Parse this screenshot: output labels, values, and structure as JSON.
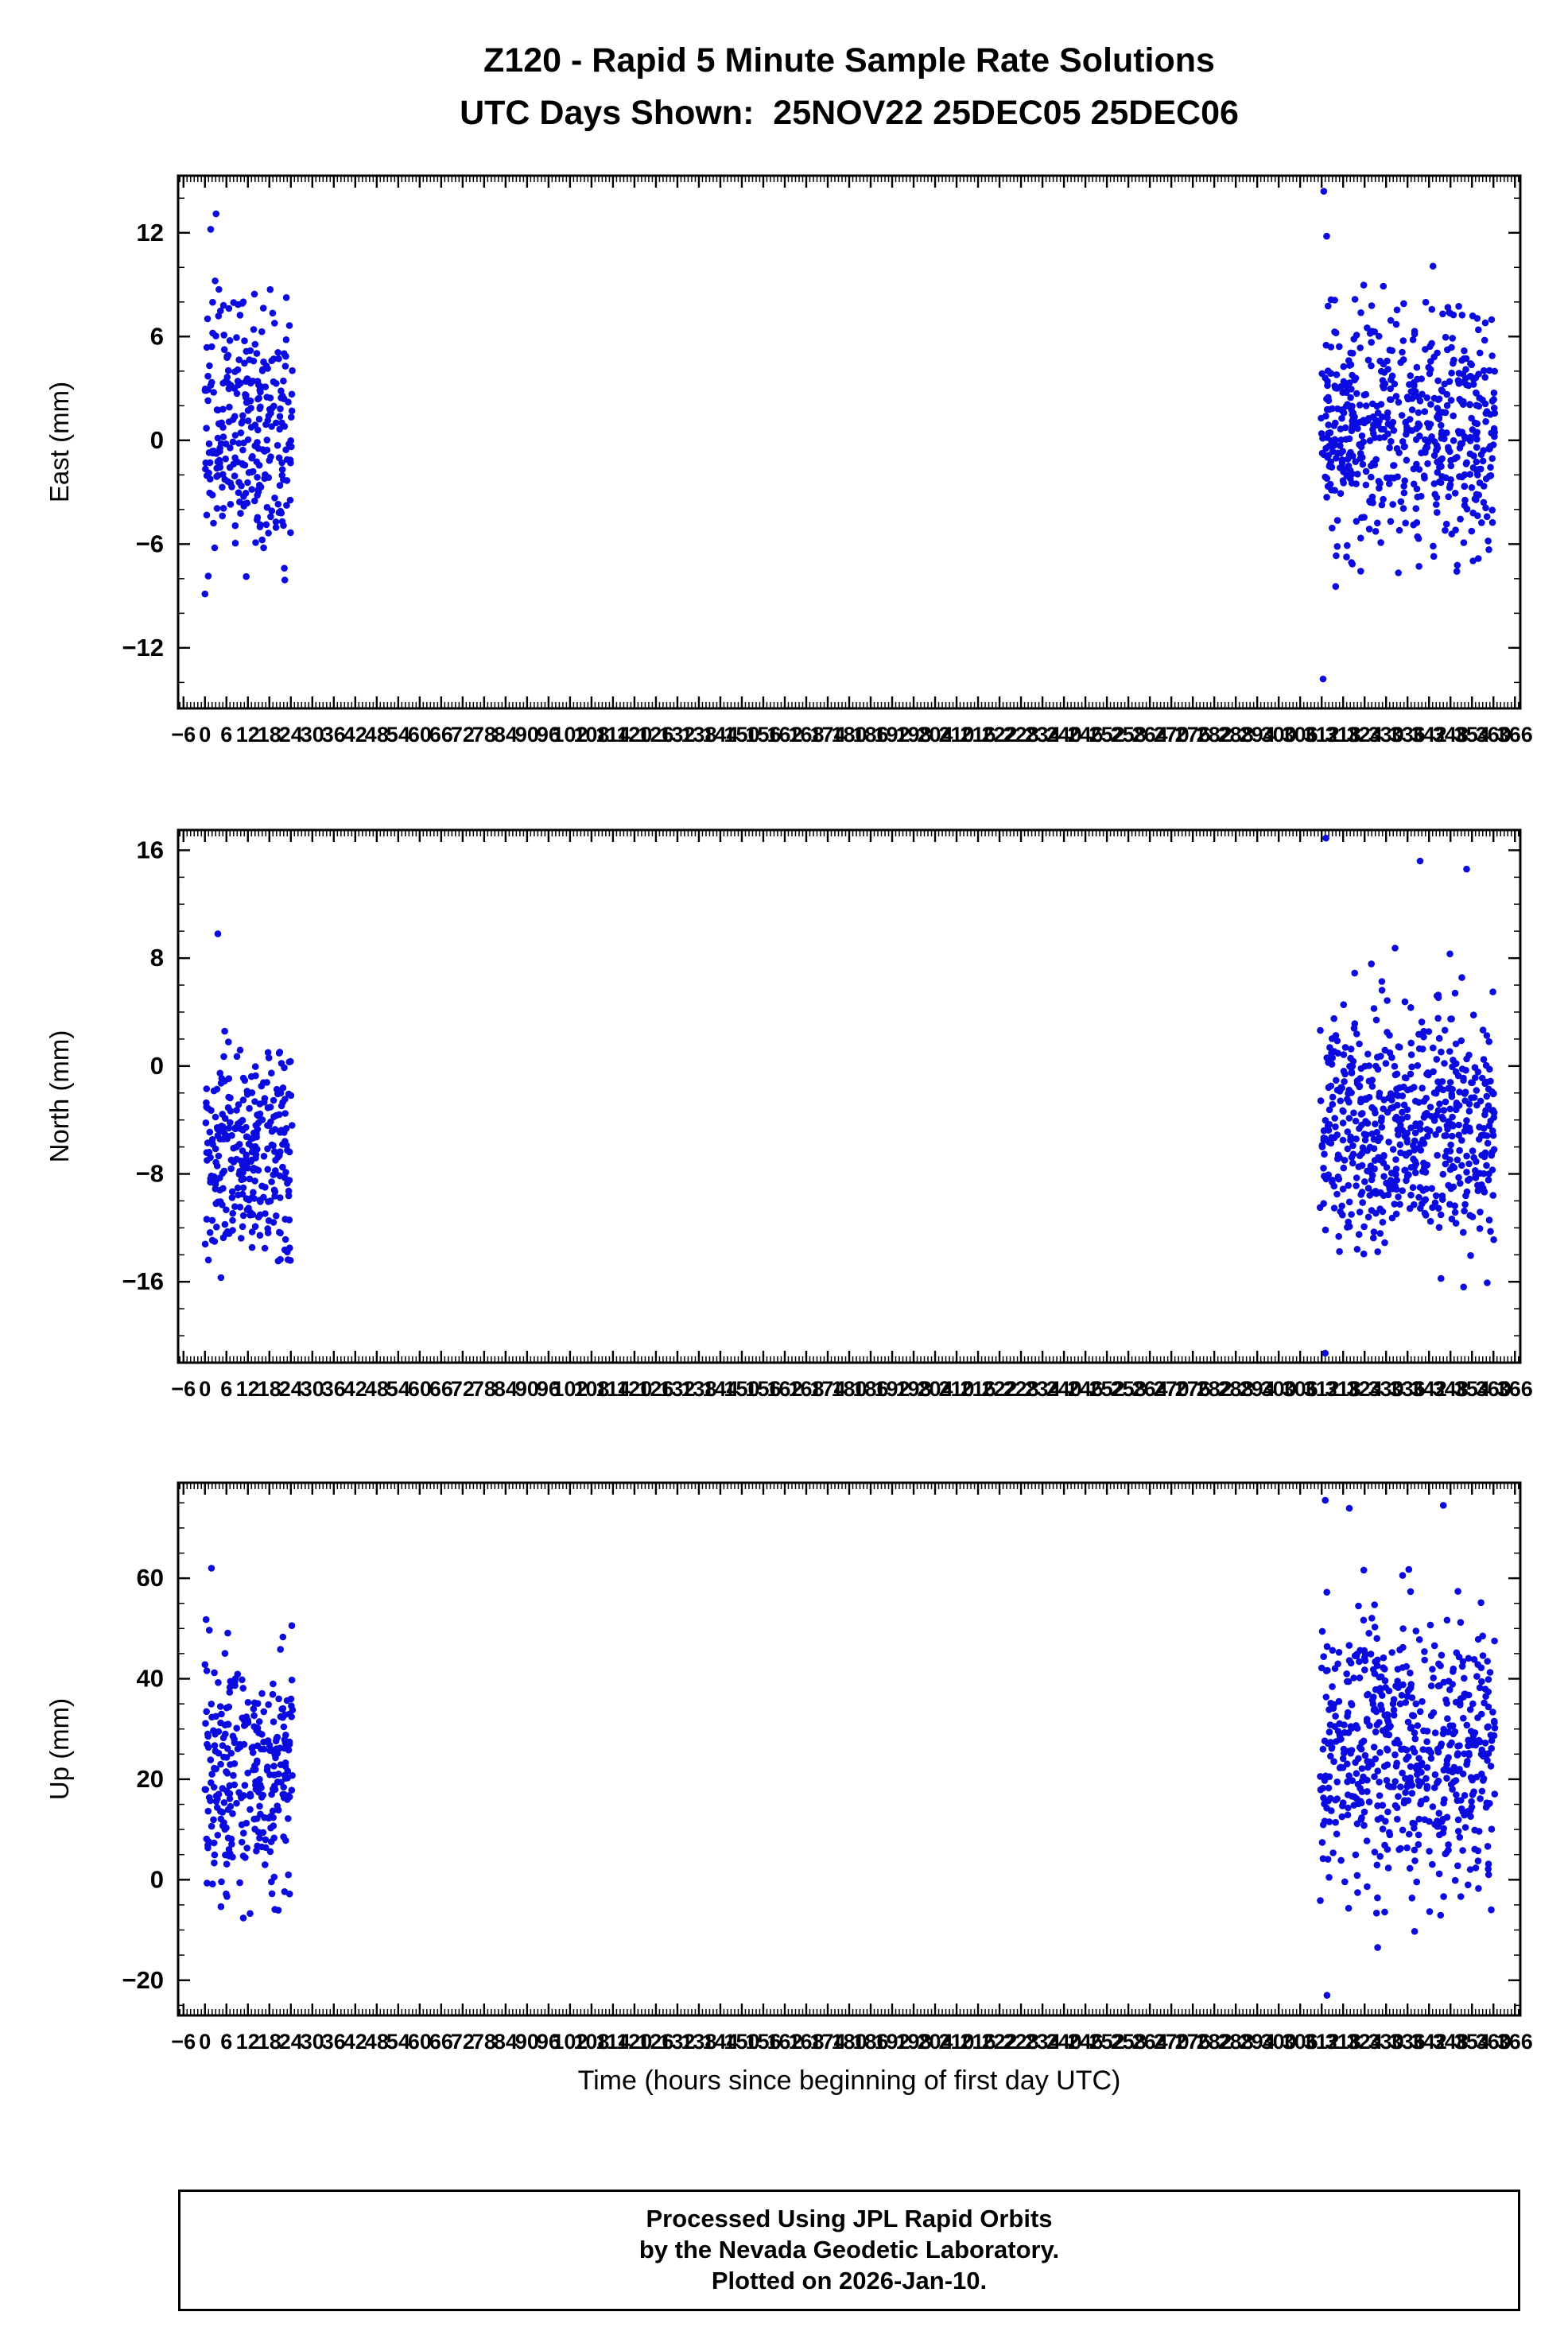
{
  "title": {
    "line1": "Z120 - Rapid 5 Minute Sample Rate Solutions",
    "line2": "UTC Days Shown:  25NOV22 25DEC05 25DEC06"
  },
  "xlabel": "Time (hours since beginning of first day UTC)",
  "footer": {
    "line1": "Processed Using JPL Rapid Orbits",
    "line2": "by the Nevada Geodetic Laboratory.",
    "line3": "Plotted on 2026-Jan-10."
  },
  "station": "Z120",
  "utc_days": [
    "25NOV22",
    "25DEC05",
    "25DEC06"
  ],
  "point_color": "#0b0bdf",
  "axis_color": "#000000",
  "seed": 42,
  "chart_data": {
    "type": "scatter",
    "title": "Z120 - Rapid 5 Minute Sample Rate Solutions",
    "subtitle": "UTC Days Shown:  25NOV22 25DEC05 25DEC06",
    "xlabel": "Time (hours since beginning of first day UTC)",
    "x_axis": {
      "lim": [
        -7.5,
        367.5
      ],
      "tick_min": -6,
      "tick_max": 366,
      "tick_step": 6,
      "minor_step": 1
    },
    "panels": [
      {
        "name": "east",
        "ylabel": "East (mm)",
        "ylim": [
          -15.5,
          15.3
        ],
        "yticks": [
          -12,
          -6,
          0,
          6,
          12
        ],
        "y_minor_step": 2,
        "clusters": [
          {
            "x_range": [
              0,
              24.5
            ],
            "n": 290,
            "y_mean": 0.6,
            "y_std": 3.7,
            "y_clip": [
              -10.5,
              9.6
            ]
          },
          {
            "x_range": [
              311.5,
              360.5
            ],
            "n": 580,
            "y_mean": 0.4,
            "y_std": 3.5,
            "y_clip": [
              -12.3,
              12.2
            ]
          }
        ],
        "outliers": [
          [
            1.6,
            12.2
          ],
          [
            3.1,
            13.1
          ],
          [
            312.6,
            14.4
          ],
          [
            313.4,
            11.8
          ],
          [
            312.4,
            -13.8
          ]
        ]
      },
      {
        "name": "north",
        "ylabel": "North (mm)",
        "ylim": [
          -22.0,
          17.5
        ],
        "yticks": [
          -16,
          -8,
          0,
          8,
          16
        ],
        "y_minor_step": 2,
        "clusters": [
          {
            "x_range": [
              0,
              24.5
            ],
            "n": 290,
            "y_mean": -6.5,
            "y_std": 4.0,
            "y_clip": [
              -19.5,
              5.5
            ]
          },
          {
            "x_range": [
              311.5,
              360.5
            ],
            "n": 580,
            "y_mean": -4.2,
            "y_std": 4.4,
            "y_clip": [
              -16.5,
              13.5
            ]
          }
        ],
        "outliers": [
          [
            3.6,
            9.8
          ],
          [
            313.2,
            16.9
          ],
          [
            339.5,
            15.2
          ],
          [
            352.5,
            14.6
          ],
          [
            313.0,
            -21.3
          ]
        ]
      },
      {
        "name": "up",
        "ylabel": "Up (mm)",
        "ylim": [
          -27,
          79
        ],
        "yticks": [
          -20,
          0,
          20,
          40,
          60
        ],
        "y_minor_step": 5,
        "clusters": [
          {
            "x_range": [
              0,
              24.5
            ],
            "n": 290,
            "y_mean": 21,
            "y_std": 11,
            "y_clip": [
              -12.5,
              62.5
            ]
          },
          {
            "x_range": [
              311.5,
              336
            ],
            "n": 290,
            "y_mean": 26,
            "y_std": 14,
            "y_clip": [
              -23.5,
              76
            ]
          },
          {
            "x_range": [
              336,
              360.5
            ],
            "n": 290,
            "y_mean": 24,
            "y_std": 13,
            "y_clip": [
              -11,
              75.5
            ]
          }
        ],
        "outliers": [
          [
            1.8,
            62.0
          ],
          [
            313.0,
            75.5
          ],
          [
            346.0,
            74.5
          ],
          [
            313.5,
            -23.0
          ]
        ]
      }
    ]
  }
}
